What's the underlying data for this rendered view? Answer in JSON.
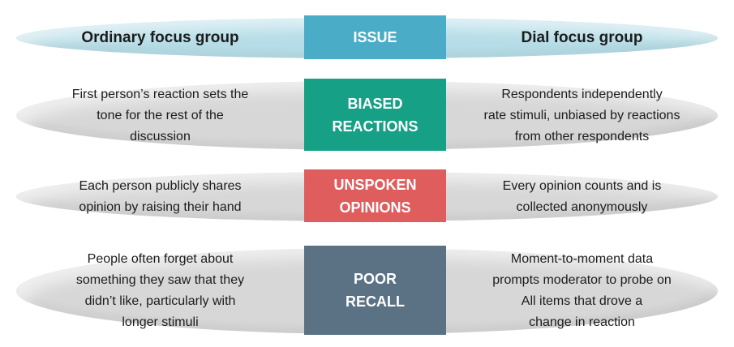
{
  "colors": {
    "header_ellipse": "#B6DDE7",
    "header_issue_box": "#4AACC6",
    "row_ellipse": "#D7D7D7",
    "biased_reactions_box": "#16A085",
    "unspoken_opinions_box": "#E05D5E",
    "poor_recall_box": "#5B7284",
    "issue_label_text": "#FFFFFF",
    "body_text": "#1C1C1C"
  },
  "header": {
    "left": "Ordinary focus group",
    "center": "ISSUE",
    "right": "Dial focus group"
  },
  "rows": [
    {
      "issue": "BIASED\nREACTIONS",
      "left": "First person’s reaction sets the\ntone for the rest of the\ndiscussion",
      "right": "Respondents independently\nrate stimuli, unbiased by reactions\nfrom other respondents"
    },
    {
      "issue": "UNSPOKEN\nOPINIONS",
      "left": "Each person publicly shares\nopinion by raising their hand",
      "right": "Every opinion counts and is\ncollected anonymously"
    },
    {
      "issue": "POOR\nRECALL",
      "left": "People often forget about\nsomething they saw that they\ndidn’t like, particularly with\nlonger stimuli",
      "right": "Moment-to-moment data\nprompts moderator to probe on\nAll items that drove a\nchange in reaction"
    }
  ]
}
